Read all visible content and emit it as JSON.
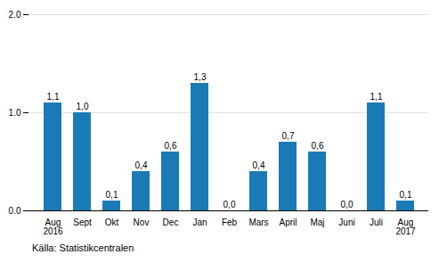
{
  "chart_data": {
    "type": "bar",
    "categories": [
      "Aug\n2016",
      "Sept",
      "Okt",
      "Nov",
      "Dec",
      "Jan",
      "Feb",
      "Mars",
      "April",
      "Maj",
      "Juni",
      "Juli",
      "Aug\n2017"
    ],
    "values": [
      1.1,
      1.0,
      0.1,
      0.4,
      0.6,
      1.3,
      0.0,
      0.4,
      0.7,
      0.6,
      0.0,
      1.1,
      0.1
    ],
    "value_labels": [
      "1,1",
      "1,0",
      "0,1",
      "0,4",
      "0,6",
      "1,3",
      "0,0",
      "0,4",
      "0,7",
      "0,6",
      "0,0",
      "1,1",
      "0,1"
    ],
    "data_labels": true,
    "color": "#1a7ab5",
    "ylim": [
      0,
      2
    ],
    "yticks": [
      0,
      1,
      2
    ],
    "grid": true,
    "caption": "Källa: Statistikcentralen"
  }
}
